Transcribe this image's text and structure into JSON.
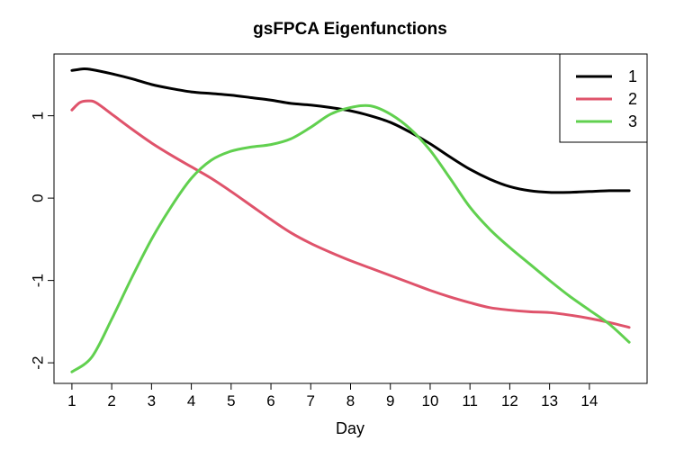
{
  "chart_data": {
    "type": "line",
    "title": "gsFPCA Eigenfunctions",
    "xlabel": "Day",
    "ylabel": "",
    "xlim": [
      0.55,
      15.45
    ],
    "ylim": [
      -2.25,
      1.75
    ],
    "x_ticks": [
      1,
      2,
      3,
      4,
      5,
      6,
      7,
      8,
      9,
      10,
      11,
      12,
      13,
      14
    ],
    "y_ticks": [
      -2,
      -1,
      0,
      1
    ],
    "grid": false,
    "legend_position": "top-right",
    "series": [
      {
        "name": "1",
        "color": "#000000",
        "x": [
          1,
          1.3,
          1.5,
          2,
          2.5,
          3,
          3.5,
          4,
          4.5,
          5,
          5.5,
          6,
          6.5,
          7,
          7.5,
          8,
          8.5,
          9,
          9.5,
          10,
          10.5,
          11,
          11.5,
          12,
          12.5,
          13,
          13.5,
          14,
          14.5,
          15
        ],
        "y": [
          1.55,
          1.57,
          1.56,
          1.51,
          1.45,
          1.38,
          1.33,
          1.29,
          1.27,
          1.25,
          1.22,
          1.19,
          1.15,
          1.13,
          1.1,
          1.06,
          1.0,
          0.92,
          0.8,
          0.66,
          0.5,
          0.35,
          0.23,
          0.14,
          0.09,
          0.07,
          0.07,
          0.08,
          0.09,
          0.09
        ]
      },
      {
        "name": "2",
        "color": "#DF536B",
        "x": [
          1,
          1.2,
          1.4,
          1.6,
          2,
          2.5,
          3,
          3.5,
          4,
          4.5,
          5,
          5.5,
          6,
          6.5,
          7,
          7.5,
          8,
          8.5,
          9,
          9.5,
          10,
          10.5,
          11,
          11.5,
          12,
          12.5,
          13,
          13.5,
          14,
          14.5,
          15
        ],
        "y": [
          1.07,
          1.16,
          1.18,
          1.16,
          1.02,
          0.84,
          0.67,
          0.52,
          0.38,
          0.24,
          0.08,
          -0.09,
          -0.26,
          -0.42,
          -0.55,
          -0.66,
          -0.76,
          -0.85,
          -0.94,
          -1.03,
          -1.12,
          -1.2,
          -1.27,
          -1.33,
          -1.36,
          -1.38,
          -1.39,
          -1.42,
          -1.46,
          -1.51,
          -1.57
        ]
      },
      {
        "name": "3",
        "color": "#61D04F",
        "x": [
          1,
          1.5,
          2,
          2.5,
          3,
          3.5,
          4,
          4.5,
          5,
          5.5,
          6,
          6.5,
          7,
          7.5,
          8,
          8.5,
          9,
          9.5,
          10,
          10.5,
          11,
          11.5,
          12,
          12.5,
          13,
          13.5,
          14,
          14.5,
          15
        ],
        "y": [
          -2.11,
          -1.93,
          -1.47,
          -0.97,
          -0.5,
          -0.1,
          0.24,
          0.46,
          0.57,
          0.62,
          0.65,
          0.72,
          0.86,
          1.02,
          1.1,
          1.12,
          1.02,
          0.84,
          0.58,
          0.24,
          -0.11,
          -0.38,
          -0.6,
          -0.8,
          -1.0,
          -1.19,
          -1.36,
          -1.53,
          -1.75
        ]
      }
    ]
  }
}
